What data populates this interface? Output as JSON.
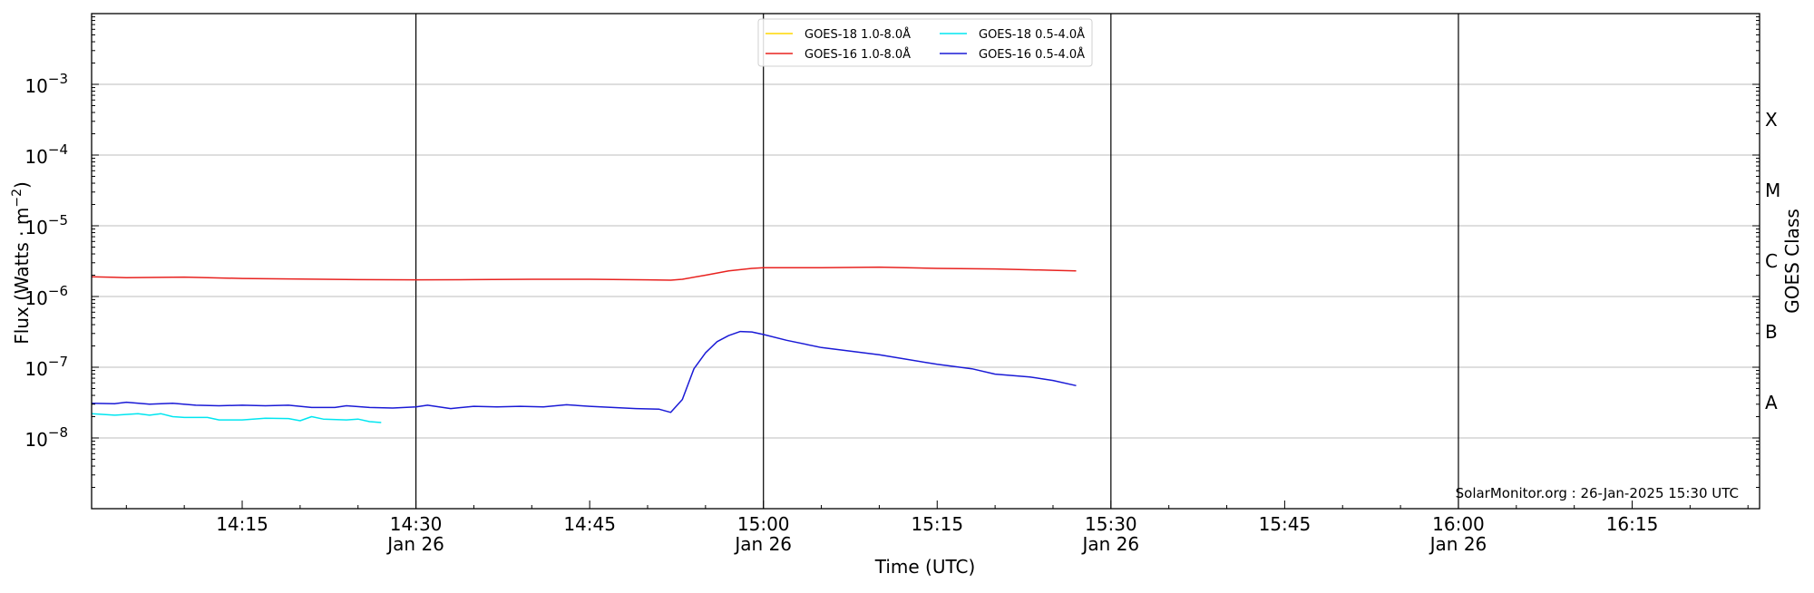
{
  "chart_data": {
    "type": "line",
    "title": "",
    "xlabel": "Time (UTC)",
    "ylabel_main": "Flux (Watts · m",
    "ylabel_sup": "−2",
    "ylabel_tail": ")",
    "ylabel_right": "GOES Class",
    "credit": "SolarMonitor.org : 26-Jan-2025 15:30 UTC",
    "yscale": "log",
    "ylim": [
      1e-09,
      0.01
    ],
    "xlim": [
      "14:02",
      "16:26"
    ],
    "ytick_labels": [
      {
        "value": 1e-08,
        "base": "10",
        "exp": "−8"
      },
      {
        "value": 1e-07,
        "base": "10",
        "exp": "−7"
      },
      {
        "value": 1e-06,
        "base": "10",
        "exp": "−6"
      },
      {
        "value": 1e-05,
        "base": "10",
        "exp": "−5"
      },
      {
        "value": 0.0001,
        "base": "10",
        "exp": "−4"
      },
      {
        "value": 0.001,
        "base": "10",
        "exp": "−3"
      }
    ],
    "xtick_labels": [
      {
        "time": "14:15",
        "label": "14:15",
        "sub": ""
      },
      {
        "time": "14:30",
        "label": "14:30",
        "sub": "Jan 26"
      },
      {
        "time": "14:45",
        "label": "14:45",
        "sub": ""
      },
      {
        "time": "15:00",
        "label": "15:00",
        "sub": "Jan 26"
      },
      {
        "time": "15:15",
        "label": "15:15",
        "sub": ""
      },
      {
        "time": "15:30",
        "label": "15:30",
        "sub": "Jan 26"
      },
      {
        "time": "15:45",
        "label": "15:45",
        "sub": ""
      },
      {
        "time": "16:00",
        "label": "16:00",
        "sub": "Jan 26"
      },
      {
        "time": "16:15",
        "label": "16:15",
        "sub": ""
      }
    ],
    "day_lines": [
      "14:30",
      "15:00",
      "15:30",
      "16:00"
    ],
    "goes_classes": [
      {
        "label": "A",
        "value": 3.16e-08
      },
      {
        "label": "B",
        "value": 3.16e-07
      },
      {
        "label": "C",
        "value": 3.16e-06
      },
      {
        "label": "M",
        "value": 3.16e-05
      },
      {
        "label": "X",
        "value": 0.000316
      }
    ],
    "grid": "horizontal at decades",
    "legend_position": "top-center",
    "series": [
      {
        "name": "GOES-18 1.0-8.0Å",
        "color": "#ffd700",
        "points": []
      },
      {
        "name": "GOES-16 1.0-8.0Å",
        "color": "#e8221f",
        "points": [
          [
            "14:02",
            1.9e-06
          ],
          [
            "14:05",
            1.85e-06
          ],
          [
            "14:10",
            1.88e-06
          ],
          [
            "14:15",
            1.8e-06
          ],
          [
            "14:20",
            1.77e-06
          ],
          [
            "14:25",
            1.73e-06
          ],
          [
            "14:30",
            1.72e-06
          ],
          [
            "14:35",
            1.73e-06
          ],
          [
            "14:40",
            1.75e-06
          ],
          [
            "14:45",
            1.75e-06
          ],
          [
            "14:50",
            1.72e-06
          ],
          [
            "14:52",
            1.7e-06
          ],
          [
            "14:53",
            1.75e-06
          ],
          [
            "14:55",
            2e-06
          ],
          [
            "14:57",
            2.3e-06
          ],
          [
            "14:59",
            2.5e-06
          ],
          [
            "15:00",
            2.55e-06
          ],
          [
            "15:05",
            2.55e-06
          ],
          [
            "15:10",
            2.6e-06
          ],
          [
            "15:15",
            2.5e-06
          ],
          [
            "15:20",
            2.45e-06
          ],
          [
            "15:25",
            2.35e-06
          ],
          [
            "15:27",
            2.3e-06
          ]
        ]
      },
      {
        "name": "GOES-18 0.5-4.0Å",
        "color": "#00e6f0",
        "points": [
          [
            "14:02",
            2.2e-08
          ],
          [
            "14:04",
            2.1e-08
          ],
          [
            "14:06",
            2.2e-08
          ],
          [
            "14:07",
            2.1e-08
          ],
          [
            "14:08",
            2.2e-08
          ],
          [
            "14:09",
            2e-08
          ],
          [
            "14:10",
            1.95e-08
          ],
          [
            "14:12",
            1.95e-08
          ],
          [
            "14:13",
            1.8e-08
          ],
          [
            "14:15",
            1.8e-08
          ],
          [
            "14:17",
            1.9e-08
          ],
          [
            "14:19",
            1.88e-08
          ],
          [
            "14:20",
            1.75e-08
          ],
          [
            "14:21",
            2e-08
          ],
          [
            "14:22",
            1.85e-08
          ],
          [
            "14:24",
            1.8e-08
          ],
          [
            "14:25",
            1.85e-08
          ],
          [
            "14:26",
            1.7e-08
          ],
          [
            "14:27",
            1.65e-08
          ]
        ]
      },
      {
        "name": "GOES-16 0.5-4.0Å",
        "color": "#1a1ad6",
        "points": [
          [
            "14:02",
            3.1e-08
          ],
          [
            "14:04",
            3.05e-08
          ],
          [
            "14:05",
            3.2e-08
          ],
          [
            "14:07",
            3e-08
          ],
          [
            "14:09",
            3.1e-08
          ],
          [
            "14:11",
            2.9e-08
          ],
          [
            "14:13",
            2.85e-08
          ],
          [
            "14:15",
            2.9e-08
          ],
          [
            "14:17",
            2.85e-08
          ],
          [
            "14:19",
            2.9e-08
          ],
          [
            "14:21",
            2.7e-08
          ],
          [
            "14:23",
            2.7e-08
          ],
          [
            "14:24",
            2.85e-08
          ],
          [
            "14:26",
            2.7e-08
          ],
          [
            "14:28",
            2.65e-08
          ],
          [
            "14:30",
            2.75e-08
          ],
          [
            "14:31",
            2.9e-08
          ],
          [
            "14:33",
            2.6e-08
          ],
          [
            "14:35",
            2.8e-08
          ],
          [
            "14:37",
            2.75e-08
          ],
          [
            "14:39",
            2.8e-08
          ],
          [
            "14:41",
            2.75e-08
          ],
          [
            "14:43",
            2.95e-08
          ],
          [
            "14:45",
            2.8e-08
          ],
          [
            "14:47",
            2.7e-08
          ],
          [
            "14:49",
            2.6e-08
          ],
          [
            "14:51",
            2.55e-08
          ],
          [
            "14:52",
            2.3e-08
          ],
          [
            "14:53",
            3.5e-08
          ],
          [
            "14:54",
            9.5e-08
          ],
          [
            "14:55",
            1.6e-07
          ],
          [
            "14:56",
            2.3e-07
          ],
          [
            "14:57",
            2.8e-07
          ],
          [
            "14:58",
            3.2e-07
          ],
          [
            "14:59",
            3.15e-07
          ],
          [
            "15:00",
            2.9e-07
          ],
          [
            "15:02",
            2.4e-07
          ],
          [
            "15:05",
            1.9e-07
          ],
          [
            "15:10",
            1.5e-07
          ],
          [
            "15:15",
            1.1e-07
          ],
          [
            "15:18",
            9.5e-08
          ],
          [
            "15:20",
            8e-08
          ],
          [
            "15:23",
            7.3e-08
          ],
          [
            "15:25",
            6.5e-08
          ],
          [
            "15:27",
            5.5e-08
          ]
        ]
      }
    ]
  }
}
